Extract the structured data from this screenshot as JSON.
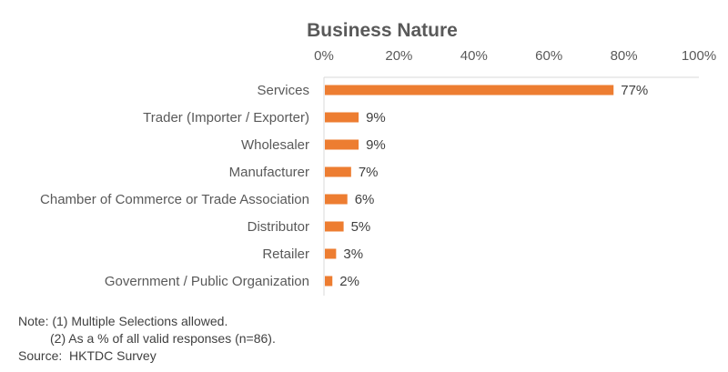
{
  "chart_data": {
    "type": "bar",
    "orientation": "horizontal",
    "title": "Business Nature",
    "xlim": [
      0,
      100
    ],
    "x_ticks": [
      "0%",
      "20%",
      "40%",
      "60%",
      "80%",
      "100%"
    ],
    "x_tick_values": [
      0,
      20,
      40,
      60,
      80,
      100
    ],
    "categories": [
      "Services",
      "Trader (Importer / Exporter)",
      "Wholesaler",
      "Manufacturer",
      "Chamber of Commerce or Trade Association",
      "Distributor",
      "Retailer",
      "Government / Public Organization"
    ],
    "values": [
      77,
      9,
      9,
      7,
      6,
      5,
      3,
      2
    ],
    "data_labels": [
      "77%",
      "9%",
      "9%",
      "7%",
      "6%",
      "5%",
      "3%",
      "2%"
    ],
    "bar_color": "#ED7D31",
    "grid": false,
    "axis_position": "top"
  },
  "notes": {
    "line1": "Note: (1) Multiple Selections allowed.",
    "line2": "         (2) As a % of all valid responses (n=86).",
    "source": "Source:  HKTDC Survey"
  }
}
